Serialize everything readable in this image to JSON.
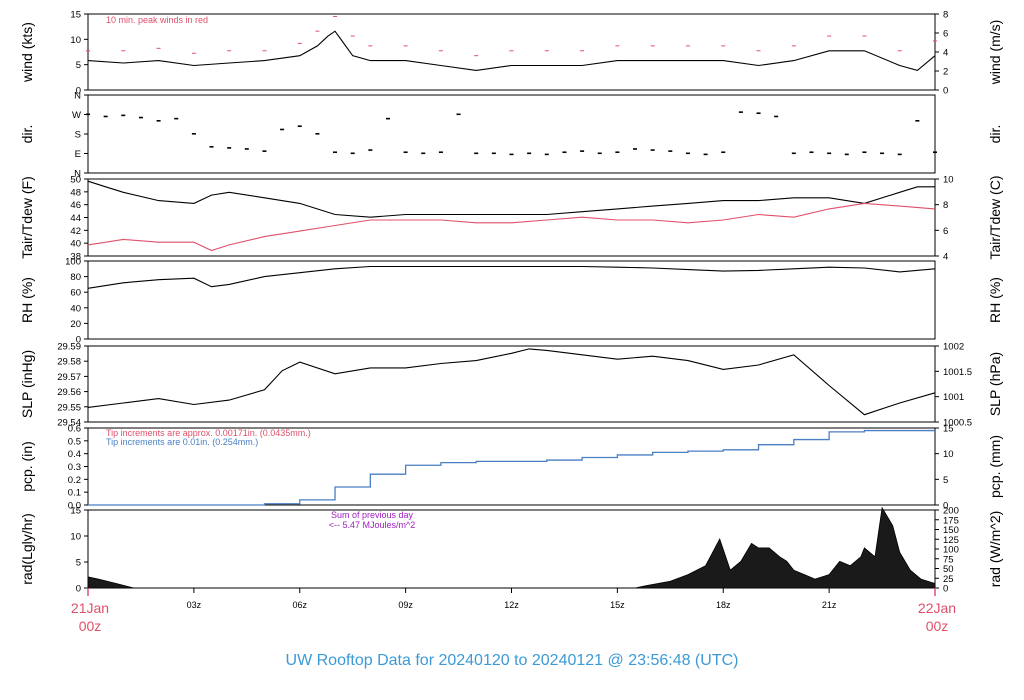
{
  "title": "UW Rooftop Data for 20240120  to  20240121 @ 23:56:48  (UTC)",
  "colors": {
    "title": "#3c9ad6",
    "date_labels": "#e0506a",
    "peak": "#e0506a",
    "air": "#000000",
    "dew": "#e0506a",
    "precip": "#4a7fc4",
    "rad_note": "#a020c0",
    "axis": "#000000"
  },
  "x_axis": {
    "hours_range": [
      0,
      24
    ],
    "ticks": [
      {
        "hour": 3,
        "label": "03z"
      },
      {
        "hour": 6,
        "label": "06z"
      },
      {
        "hour": 9,
        "label": "09z"
      },
      {
        "hour": 12,
        "label": "12z"
      },
      {
        "hour": 15,
        "label": "15z"
      },
      {
        "hour": 18,
        "label": "18z"
      },
      {
        "hour": 21,
        "label": "21z"
      }
    ],
    "start_label": {
      "day": "21Jan",
      "time": "00z"
    },
    "end_label": {
      "day": "22Jan",
      "time": "00z"
    }
  },
  "chart_data": [
    {
      "type": "line",
      "panel": "wind",
      "ylabel": "wind (kts)",
      "ylabel_right": "wind (m/s)",
      "ylim": [
        0,
        15.5
      ],
      "yticks": [
        "0",
        "5",
        "10",
        "15"
      ],
      "yticks_right": [
        "0",
        "2",
        "4",
        "6",
        "8"
      ],
      "annotation": "10 min. peak winds in red",
      "series": [
        {
          "name": "wind",
          "x": [
            0,
            1,
            2,
            3,
            4,
            5,
            6,
            6.5,
            6.8,
            7,
            7.2,
            7.5,
            8,
            9,
            10,
            11,
            12,
            13,
            14,
            15,
            16,
            17,
            18,
            19,
            20,
            21,
            22,
            23,
            23.5,
            24
          ],
          "y": [
            6,
            5.5,
            6,
            5,
            5.5,
            6,
            7,
            9,
            11,
            12,
            10,
            7,
            6,
            6,
            5,
            4,
            5,
            5,
            5,
            6,
            6,
            6,
            6,
            5,
            6,
            8,
            8,
            5,
            4,
            7
          ]
        },
        {
          "name": "10 min. peak winds",
          "x": [
            0,
            1,
            2,
            3,
            4,
            5,
            6,
            6.5,
            7,
            7.5,
            8,
            9,
            10,
            11,
            12,
            13,
            14,
            15,
            16,
            17,
            18,
            19,
            20,
            21,
            22,
            23,
            24
          ],
          "y": [
            8,
            8,
            8.5,
            7.5,
            8,
            8,
            9.5,
            12,
            15,
            11,
            9,
            9,
            8,
            7,
            8,
            8,
            8,
            9,
            9,
            9,
            9,
            8,
            9,
            11,
            11,
            8,
            10
          ]
        }
      ]
    },
    {
      "type": "scatter",
      "panel": "direction",
      "ylabel": "dir.",
      "ylabel_right": "dir.",
      "ylim": [
        0,
        360
      ],
      "yticks": [
        "N",
        "E",
        "S",
        "W",
        "N"
      ],
      "series": [
        {
          "name": "direction",
          "x": [
            0,
            0.5,
            1,
            1.5,
            2,
            2.5,
            3,
            3.5,
            4,
            4.5,
            5,
            5.5,
            6,
            6.5,
            7,
            7.5,
            8,
            8.5,
            9,
            9.5,
            10,
            10.5,
            11,
            11.5,
            12,
            12.5,
            13,
            13.5,
            14,
            14.5,
            15,
            15.5,
            16,
            16.5,
            17,
            17.5,
            18,
            18.5,
            19,
            19.5,
            20,
            20.5,
            21,
            21.5,
            22,
            22.5,
            23,
            23.5,
            24
          ],
          "y": [
            270,
            260,
            265,
            255,
            240,
            250,
            180,
            120,
            115,
            110,
            100,
            200,
            215,
            180,
            95,
            90,
            105,
            250,
            95,
            90,
            95,
            270,
            90,
            90,
            85,
            90,
            85,
            95,
            100,
            90,
            95,
            110,
            105,
            100,
            90,
            85,
            95,
            280,
            275,
            260,
            90,
            95,
            90,
            85,
            95,
            90,
            85,
            240,
            95
          ]
        }
      ]
    },
    {
      "type": "line",
      "panel": "temperature",
      "ylabel": "Tair/Tdew (F)",
      "ylabel_right": "Tair/Tdew (C)",
      "ylim": [
        36.5,
        50.4
      ],
      "yticks": [
        "38",
        "40",
        "42",
        "44",
        "46",
        "48",
        "50"
      ],
      "yticks_right": [
        "4",
        "6",
        "8",
        "10"
      ],
      "series": [
        {
          "name": "Tair",
          "x": [
            0,
            0.5,
            1,
            2,
            3,
            3.5,
            4,
            5,
            6,
            7,
            8,
            9,
            10,
            11,
            12,
            13,
            14,
            15,
            16,
            17,
            18,
            19,
            20,
            21,
            22,
            23,
            23.5,
            24
          ],
          "y": [
            50,
            49,
            48,
            46.5,
            46,
            47.5,
            48,
            47,
            46,
            44,
            43.5,
            44,
            44,
            44,
            44,
            44,
            44.5,
            45,
            45.5,
            46,
            46.5,
            46.5,
            47,
            47,
            46,
            48,
            49,
            49
          ]
        },
        {
          "name": "Tdew",
          "x": [
            0,
            1,
            2,
            3,
            3.5,
            4,
            5,
            6,
            7,
            8,
            9,
            10,
            11,
            12,
            13,
            14,
            15,
            16,
            17,
            18,
            19,
            20,
            21,
            22,
            23,
            24
          ],
          "y": [
            38.5,
            39.5,
            39,
            39,
            37.5,
            38.5,
            40,
            41,
            42,
            43,
            43,
            43,
            42.5,
            42.5,
            43,
            43.5,
            43,
            43,
            42.5,
            43,
            44,
            43.5,
            45,
            46,
            45.5,
            45
          ]
        }
      ]
    },
    {
      "type": "line",
      "panel": "humidity",
      "ylabel": "RH (%)",
      "ylabel_right": "RH (%)",
      "ylim": [
        0,
        100
      ],
      "yticks": [
        "0",
        "20",
        "40",
        "60",
        "80",
        "100"
      ],
      "series": [
        {
          "name": "RH",
          "x": [
            0,
            1,
            2,
            3,
            3.5,
            4,
            5,
            6,
            7,
            8,
            9,
            10,
            11,
            12,
            13,
            14,
            15,
            16,
            17,
            18,
            19,
            20,
            21,
            22,
            23,
            24
          ],
          "y": [
            65,
            72,
            76,
            78,
            67,
            70,
            80,
            85,
            90,
            93,
            93,
            93,
            93,
            93,
            93,
            93,
            92,
            91,
            89,
            87,
            88,
            90,
            92,
            91,
            86,
            90
          ]
        }
      ]
    },
    {
      "type": "line",
      "panel": "pressure",
      "ylabel": "SLP (inHg)",
      "ylabel_right": "SLP (hPa)",
      "ylim": [
        29.54,
        29.592
      ],
      "yticks": [
        "29.54",
        "29.55",
        "29.56",
        "29.57",
        "29.58",
        "29.59"
      ],
      "yticks_right": [
        "1000.5",
        "1001",
        "1001.5",
        "1002"
      ],
      "series": [
        {
          "name": "SLP",
          "x": [
            0,
            1,
            2,
            3,
            4,
            5,
            5.5,
            6,
            7,
            8,
            9,
            10,
            11,
            12,
            12.5,
            13,
            14,
            15,
            16,
            17,
            18,
            19,
            20,
            21,
            22,
            23,
            24
          ],
          "y": [
            29.55,
            29.553,
            29.556,
            29.552,
            29.555,
            29.562,
            29.575,
            29.581,
            29.573,
            29.577,
            29.577,
            29.58,
            29.582,
            29.587,
            29.59,
            29.589,
            29.586,
            29.583,
            29.585,
            29.582,
            29.576,
            29.579,
            29.586,
            29.565,
            29.545,
            29.553,
            29.56
          ]
        }
      ]
    },
    {
      "type": "area",
      "panel": "precipitation",
      "ylabel": "pcp. (in)",
      "ylabel_right": "pcp. (mm)",
      "ylim": [
        0,
        0.6
      ],
      "yticks": [
        "0.0",
        "0.1",
        "0.2",
        "0.3",
        "0.4",
        "0.5",
        "0.6"
      ],
      "yticks_right": [
        "0",
        "5",
        "10",
        "15"
      ],
      "annotations": [
        {
          "text": "Tip increments are approx. 0.00171in. (0.0435mm.)",
          "color": "#e0506a"
        },
        {
          "text": "Tip increments are 0.01in. (0.254mm.)",
          "color": "#4a7fc4"
        }
      ],
      "series": [
        {
          "name": "pcp",
          "x": [
            0,
            4,
            5,
            6,
            7,
            8,
            9,
            10,
            11,
            12,
            13,
            14,
            15,
            16,
            17,
            18,
            19,
            20,
            21,
            22,
            23,
            24
          ],
          "y": [
            0,
            0,
            0.01,
            0.04,
            0.14,
            0.24,
            0.31,
            0.33,
            0.34,
            0.34,
            0.35,
            0.37,
            0.39,
            0.41,
            0.42,
            0.43,
            0.47,
            0.51,
            0.57,
            0.58,
            0.58,
            0.58
          ]
        }
      ]
    },
    {
      "type": "area",
      "panel": "radiation",
      "ylabel": "rad(Lgly/hr)",
      "ylabel_right": "rad (W/m^2)",
      "ylim": [
        0,
        17.5
      ],
      "yticks": [
        "0",
        "5",
        "10",
        "15"
      ],
      "yticks_right": [
        "0",
        "25",
        "50",
        "75",
        "100",
        "125",
        "150",
        "175",
        "200"
      ],
      "annotation": {
        "line1": "Sum of previous day",
        "line2": "<-- 5.47 MJoules/m^2"
      },
      "series": [
        {
          "name": "radiation",
          "x": [
            0,
            0.3,
            0.8,
            1.2,
            1.3,
            15.5,
            15.8,
            16.5,
            17,
            17.5,
            17.7,
            17.9,
            18.2,
            18.5,
            18.8,
            19,
            19.3,
            19.6,
            19.8,
            20,
            20.3,
            20.6,
            21,
            21.3,
            21.6,
            21.9,
            22,
            22.3,
            22.5,
            22.8,
            23,
            23.3,
            23.6,
            24
          ],
          "y": [
            2.5,
            2,
            1,
            0.2,
            0,
            0,
            0.5,
            1.5,
            3,
            5,
            8,
            11,
            4,
            6,
            10,
            9,
            9,
            7,
            6,
            4,
            3,
            2,
            3,
            6,
            5,
            7,
            9,
            7,
            18,
            14,
            8,
            4,
            2,
            1
          ]
        }
      ]
    }
  ]
}
